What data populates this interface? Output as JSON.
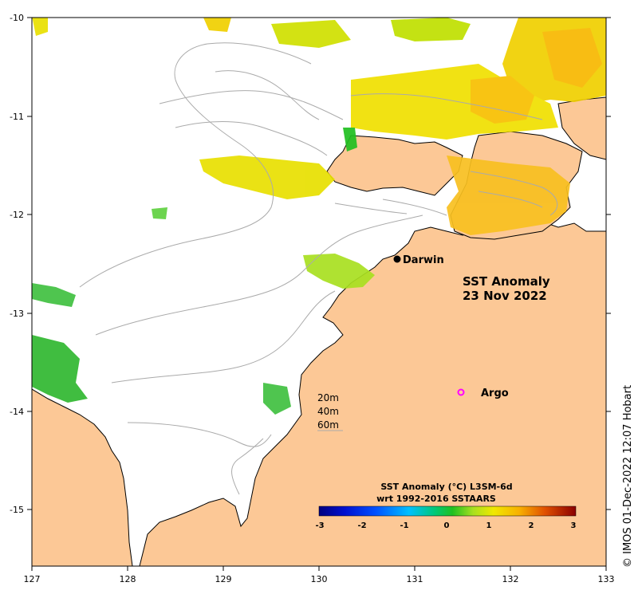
{
  "map": {
    "title_line1": "SST Anomaly",
    "title_line2": "23 Nov 2022",
    "colors": {
      "land": "#fcc896",
      "ocean": "#ffffff",
      "contour": "#aaaaaa",
      "coast": "#000000",
      "argo": "#ff00ff"
    },
    "lon_ticks": [
      "127",
      "128",
      "129",
      "130",
      "131",
      "132",
      "133"
    ],
    "lat_ticks": [
      "-10",
      "-11",
      "-12",
      "-13",
      "-14",
      "-15"
    ],
    "places": [
      {
        "name": "Darwin",
        "marker": "filled-circle",
        "lon": 130.84,
        "lat": -12.46
      },
      {
        "name": "Argo",
        "marker": "open-circle",
        "lon": 131.48,
        "lat": -13.81
      }
    ],
    "depth_legend": [
      "20m",
      "40m",
      "60m"
    ],
    "colorbar": {
      "title_line1": "SST Anomaly (°C) L3SM-6d",
      "title_line2": "wrt 1992-2016 SSTAARS",
      "ticks": [
        "-3",
        "-2",
        "-1",
        "0",
        "1",
        "2",
        "3"
      ],
      "range": [
        -3,
        3
      ]
    },
    "credit": "© IMOS 01-Dec-2022 12:07 Hobart"
  }
}
